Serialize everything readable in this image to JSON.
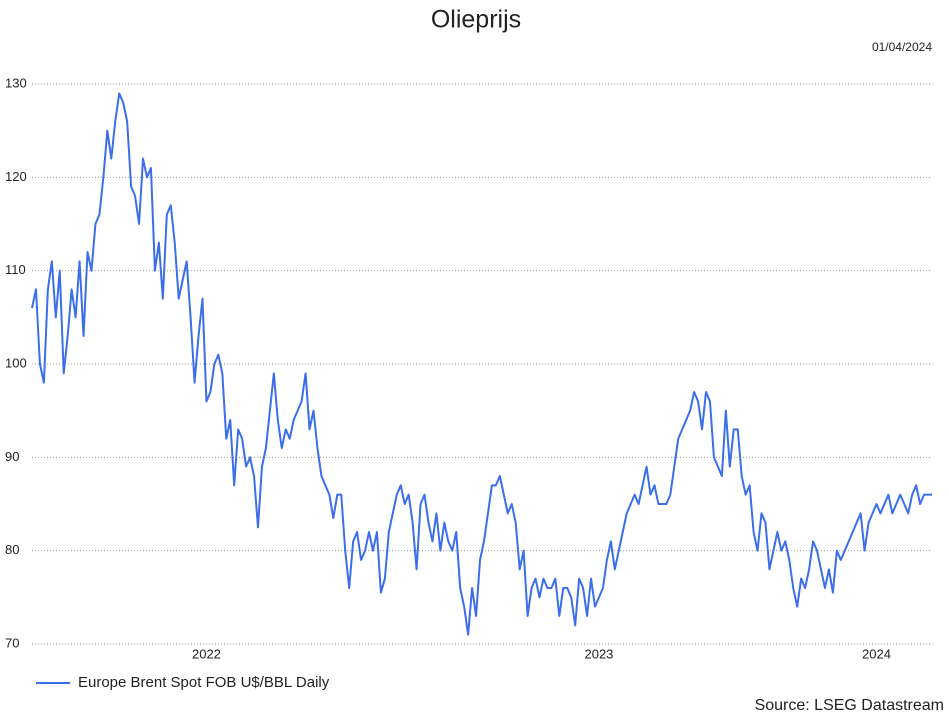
{
  "chart_data": {
    "type": "line",
    "title": "Olieprijs",
    "date": "01/04/2024",
    "source": "Source: LSEG Datastream",
    "categories": [
      null,
      null,
      null,
      null,
      null,
      null,
      null,
      null,
      null,
      null,
      null,
      null,
      null,
      null,
      null,
      null,
      null,
      null,
      null,
      null,
      null,
      null,
      null,
      null,
      null,
      null,
      null,
      null,
      null,
      null,
      null,
      null,
      null,
      null,
      null,
      null,
      null,
      null,
      null,
      null,
      null,
      null,
      null,
      null,
      "2022",
      null,
      null,
      null,
      null,
      null,
      null,
      null,
      null,
      null,
      null,
      null,
      null,
      null,
      null,
      null,
      null,
      null,
      null,
      null,
      null,
      null,
      null,
      null,
      null,
      null,
      null,
      null,
      null,
      null,
      null,
      null,
      null,
      null,
      null,
      null,
      null,
      null,
      null,
      null,
      null,
      null,
      null,
      null,
      null,
      null,
      null,
      null,
      null,
      null,
      null,
      null,
      null,
      null,
      null,
      null,
      null,
      null,
      null,
      null,
      null,
      null,
      null,
      null,
      null,
      null,
      null,
      null,
      null,
      null,
      null,
      null,
      null,
      null,
      null,
      null,
      null,
      null,
      null,
      null,
      null,
      null,
      null,
      null,
      null,
      null,
      null,
      null,
      null,
      null,
      null,
      null,
      null,
      null,
      null,
      null,
      null,
      null,
      null,
      "2023",
      null,
      null,
      null,
      null,
      null,
      null,
      null,
      null,
      null,
      null,
      null,
      null,
      null,
      null,
      null,
      null,
      null,
      null,
      null,
      null,
      null,
      null,
      null,
      null,
      null,
      null,
      null,
      null,
      null,
      null,
      null,
      null,
      null,
      null,
      null,
      null,
      null,
      null,
      null,
      null,
      null,
      null,
      null,
      null,
      null,
      null,
      null,
      null,
      null,
      null,
      null,
      null,
      null,
      null,
      null,
      null,
      null,
      null,
      null,
      null,
      null,
      null,
      null,
      null,
      null,
      null,
      null,
      null,
      null,
      "2024",
      null,
      null,
      null,
      null,
      null,
      null,
      null,
      null,
      null,
      null,
      null,
      null,
      null,
      null
    ],
    "series": [
      {
        "name": "Europe Brent Spot FOB U$/BBL Daily",
        "color": "#3b6ee8",
        "values": [
          106,
          108,
          100,
          98,
          108,
          111,
          105,
          110,
          99,
          103,
          108,
          105,
          111,
          103,
          112,
          110,
          115,
          116,
          120,
          125,
          122,
          126,
          129,
          128,
          126,
          119,
          118,
          115,
          122,
          120,
          121,
          110,
          113,
          107,
          116,
          117,
          113,
          107,
          109,
          111,
          105,
          98,
          103,
          107,
          96,
          97,
          100,
          101,
          99,
          92,
          94,
          87,
          93,
          92,
          89,
          90,
          88,
          82.5,
          89,
          91,
          95,
          99,
          94,
          91,
          93,
          92,
          94,
          95,
          96,
          99,
          93,
          95,
          91,
          88,
          87,
          86,
          83.5,
          86,
          86,
          80,
          76,
          81,
          82,
          79,
          80,
          82,
          80,
          82,
          75.5,
          77,
          82,
          84,
          86,
          87,
          85,
          86,
          83,
          78,
          85,
          86,
          83,
          81,
          84,
          80,
          83,
          81,
          80,
          82,
          76,
          74,
          71,
          76,
          73,
          79,
          81,
          84,
          87,
          87,
          88,
          86,
          84,
          85,
          83,
          78,
          80,
          73,
          76,
          77,
          75,
          77,
          76,
          76,
          77,
          73,
          76,
          76,
          75,
          72,
          77,
          76,
          73,
          77,
          74,
          75,
          76,
          79,
          81,
          78,
          80,
          82,
          84,
          85,
          86,
          85,
          87,
          89,
          86,
          87,
          85,
          85,
          85,
          86,
          89,
          92,
          93,
          94,
          95,
          97,
          96,
          93,
          97,
          96,
          90,
          89,
          88,
          95,
          89,
          93,
          93,
          88,
          86,
          87,
          82,
          80,
          84,
          83,
          78,
          80,
          82,
          80,
          81,
          79,
          76,
          74,
          77,
          76,
          78,
          81,
          80,
          78,
          76,
          78,
          75.5,
          80,
          79,
          80,
          81,
          82,
          83,
          84,
          80,
          83,
          84,
          85,
          84,
          85,
          86,
          84,
          85,
          86,
          85,
          84,
          86,
          87,
          85,
          86,
          86,
          86
        ]
      }
    ],
    "ylim": [
      70,
      130
    ],
    "yticks": [
      70,
      80,
      90,
      100,
      110,
      120,
      130
    ],
    "grid": true,
    "legend": "bottom-left"
  }
}
